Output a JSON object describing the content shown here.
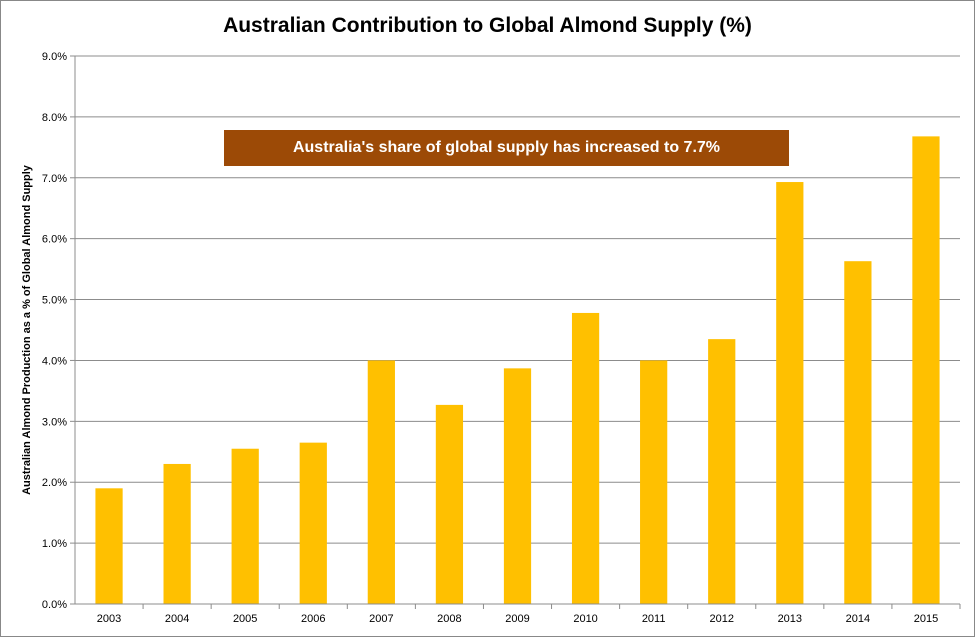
{
  "chart_data": {
    "type": "bar",
    "title": "Australian Contribution to Global Almond Supply (%)",
    "ylabel": "Australian Almond Production as a % of Global Almond Supply",
    "xlabel": "",
    "categories": [
      "2003",
      "2004",
      "2005",
      "2006",
      "2007",
      "2008",
      "2009",
      "2010",
      "2011",
      "2012",
      "2013",
      "2014",
      "2015"
    ],
    "values": [
      1.9,
      2.3,
      2.55,
      2.65,
      4.0,
      3.27,
      3.87,
      4.78,
      4.0,
      4.35,
      6.93,
      5.63,
      7.68
    ],
    "ylim": [
      0,
      9
    ],
    "yticks": [
      "0.0%",
      "1.0%",
      "2.0%",
      "3.0%",
      "4.0%",
      "5.0%",
      "6.0%",
      "7.0%",
      "8.0%",
      "9.0%"
    ],
    "grid": true,
    "bar_color": "#ffc000",
    "annotation": "Australia's share of global supply has increased to 7.7%",
    "annotation_color": "#9c4a06"
  }
}
